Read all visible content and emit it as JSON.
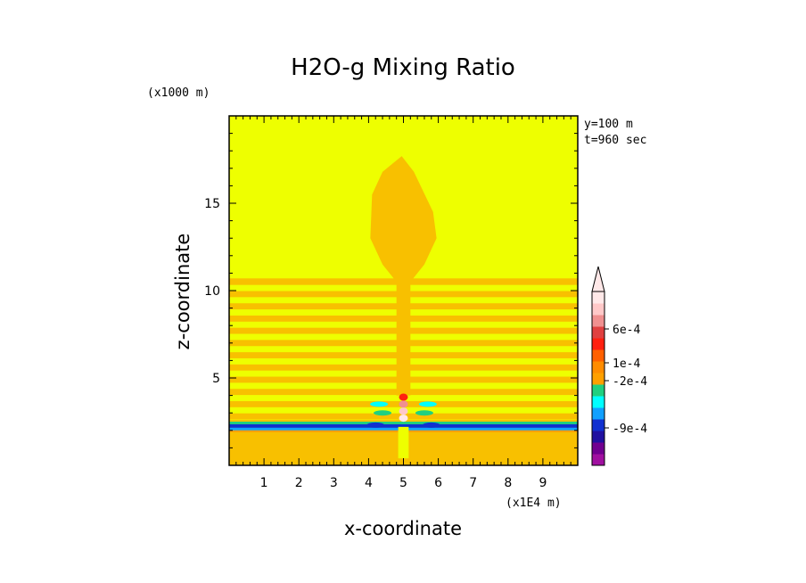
{
  "chart_data": {
    "type": "heatmap",
    "title": "H2O-g Mixing Ratio",
    "xlabel": "x-coordinate",
    "ylabel": "z-coordinate",
    "x_unit": "(x1E4 m)",
    "y_unit": "(x1000 m)",
    "annotations": [
      "y=100 m",
      "t=960 sec"
    ],
    "xlim": [
      0,
      10
    ],
    "ylim": [
      0,
      20
    ],
    "x_ticks": [
      1,
      2,
      3,
      4,
      5,
      6,
      7,
      8,
      9
    ],
    "y_ticks": [
      5,
      10,
      15
    ],
    "colorbar": {
      "labels": [
        "6e-4",
        "1e-4",
        "-2e-4",
        "-9e-4"
      ],
      "colors": [
        "#a010a0",
        "#700090",
        "#2010a0",
        "#1030d0",
        "#10a0ff",
        "#00ffff",
        "#20d080",
        "#ffa000",
        "#ff8c00",
        "#ff6000",
        "#ff2010",
        "#e04040",
        "#f09090",
        "#ffc8c8",
        "#ffe8e8"
      ],
      "extend": "max"
    },
    "background_color": "#eeff00",
    "plume_color": "#f8c000"
  }
}
